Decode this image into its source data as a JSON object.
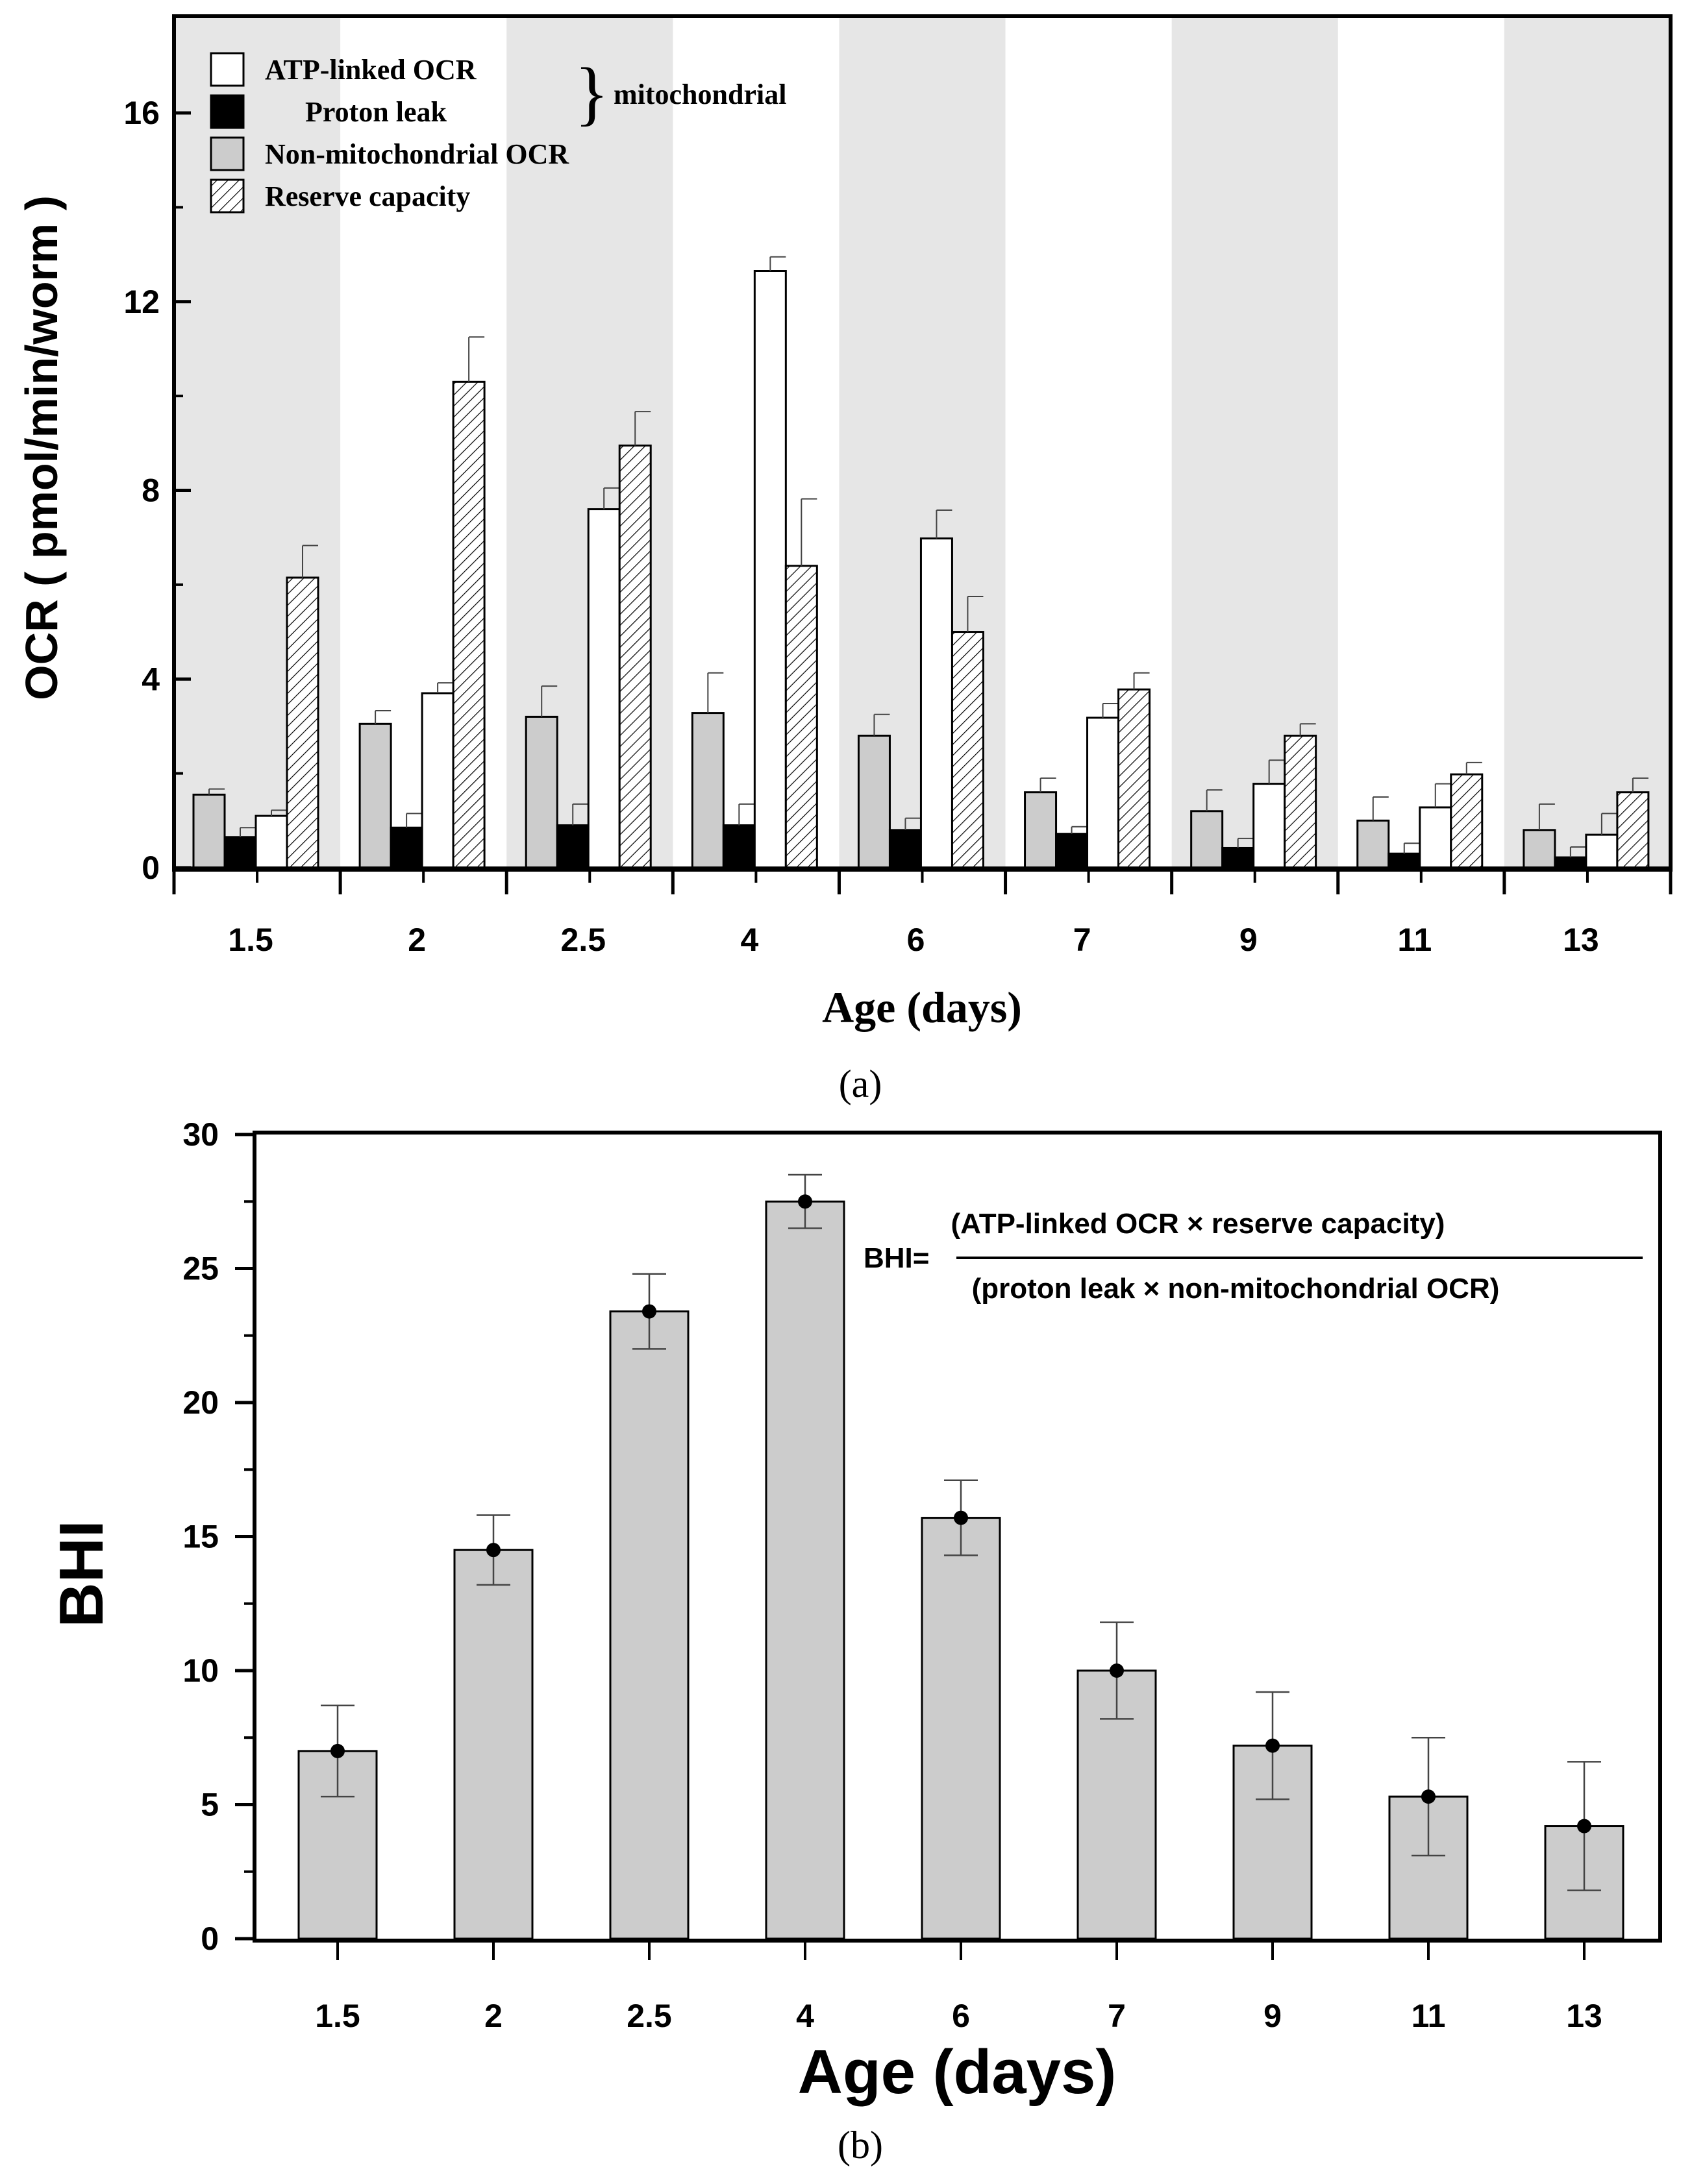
{
  "chart_data": [
    {
      "type": "bar",
      "panel_label": "(a)",
      "xlabel": "Age (days)",
      "ylabel": "OCR ( pmol/min/worm )",
      "ylim": [
        0,
        18
      ],
      "yticks": [
        0,
        4,
        8,
        12,
        16
      ],
      "categories": [
        "1.5",
        "2",
        "2.5",
        "4",
        "6",
        "7",
        "9",
        "11",
        "13"
      ],
      "series": [
        {
          "name": "Non-mitochondrial OCR",
          "values": [
            1.55,
            3.05,
            3.2,
            3.28,
            2.8,
            1.6,
            1.2,
            1.0,
            0.8
          ],
          "errors": [
            0.12,
            0.28,
            0.65,
            0.85,
            0.45,
            0.3,
            0.45,
            0.5,
            0.55
          ]
        },
        {
          "name": "Proton leak",
          "values": [
            0.65,
            0.85,
            0.9,
            0.9,
            0.8,
            0.72,
            0.42,
            0.3,
            0.22
          ],
          "errors": [
            0.2,
            0.3,
            0.45,
            0.45,
            0.25,
            0.15,
            0.2,
            0.22,
            0.22
          ]
        },
        {
          "name": "ATP-linked OCR",
          "values": [
            1.1,
            3.7,
            7.6,
            12.65,
            6.98,
            3.18,
            1.78,
            1.28,
            0.7
          ],
          "errors": [
            0.12,
            0.22,
            0.45,
            0.3,
            0.6,
            0.3,
            0.5,
            0.5,
            0.45
          ]
        },
        {
          "name": "Reserve capacity",
          "values": [
            6.15,
            10.3,
            8.95,
            6.4,
            5.0,
            3.78,
            2.8,
            1.98,
            1.6
          ],
          "errors": [
            0.68,
            0.95,
            0.72,
            1.42,
            0.75,
            0.35,
            0.25,
            0.25,
            0.3
          ]
        }
      ],
      "legend": {
        "items": [
          "ATP-linked OCR",
          "Proton leak",
          "Non-mitochondrial OCR",
          "Reserve capacity"
        ],
        "group_label": "mitochondrial",
        "placement": "top-left"
      }
    },
    {
      "type": "bar",
      "panel_label": "(b)",
      "xlabel": "Age (days)",
      "ylabel": "BHI",
      "ylim": [
        0,
        30
      ],
      "yticks": [
        0,
        5,
        10,
        15,
        20,
        25,
        30
      ],
      "categories": [
        "1.5",
        "2",
        "2.5",
        "4",
        "6",
        "7",
        "9",
        "11",
        "13"
      ],
      "values": [
        7.0,
        14.5,
        23.4,
        27.5,
        15.7,
        10.0,
        7.2,
        5.3,
        4.2
      ],
      "errors": [
        1.7,
        1.3,
        1.4,
        1.0,
        1.4,
        1.8,
        2.0,
        2.2,
        2.4
      ],
      "formula": {
        "lhs": "BHI=",
        "numerator": "(ATP-linked OCR × reserve capacity)",
        "denominator": "(proton leak × non-mitochondrial OCR)"
      }
    }
  ],
  "colors": {
    "axis": "#000000",
    "band_shade": "#e6e6e6",
    "bar_gray": "#cccccc",
    "bar_black": "#000000",
    "bar_white": "#ffffff"
  }
}
